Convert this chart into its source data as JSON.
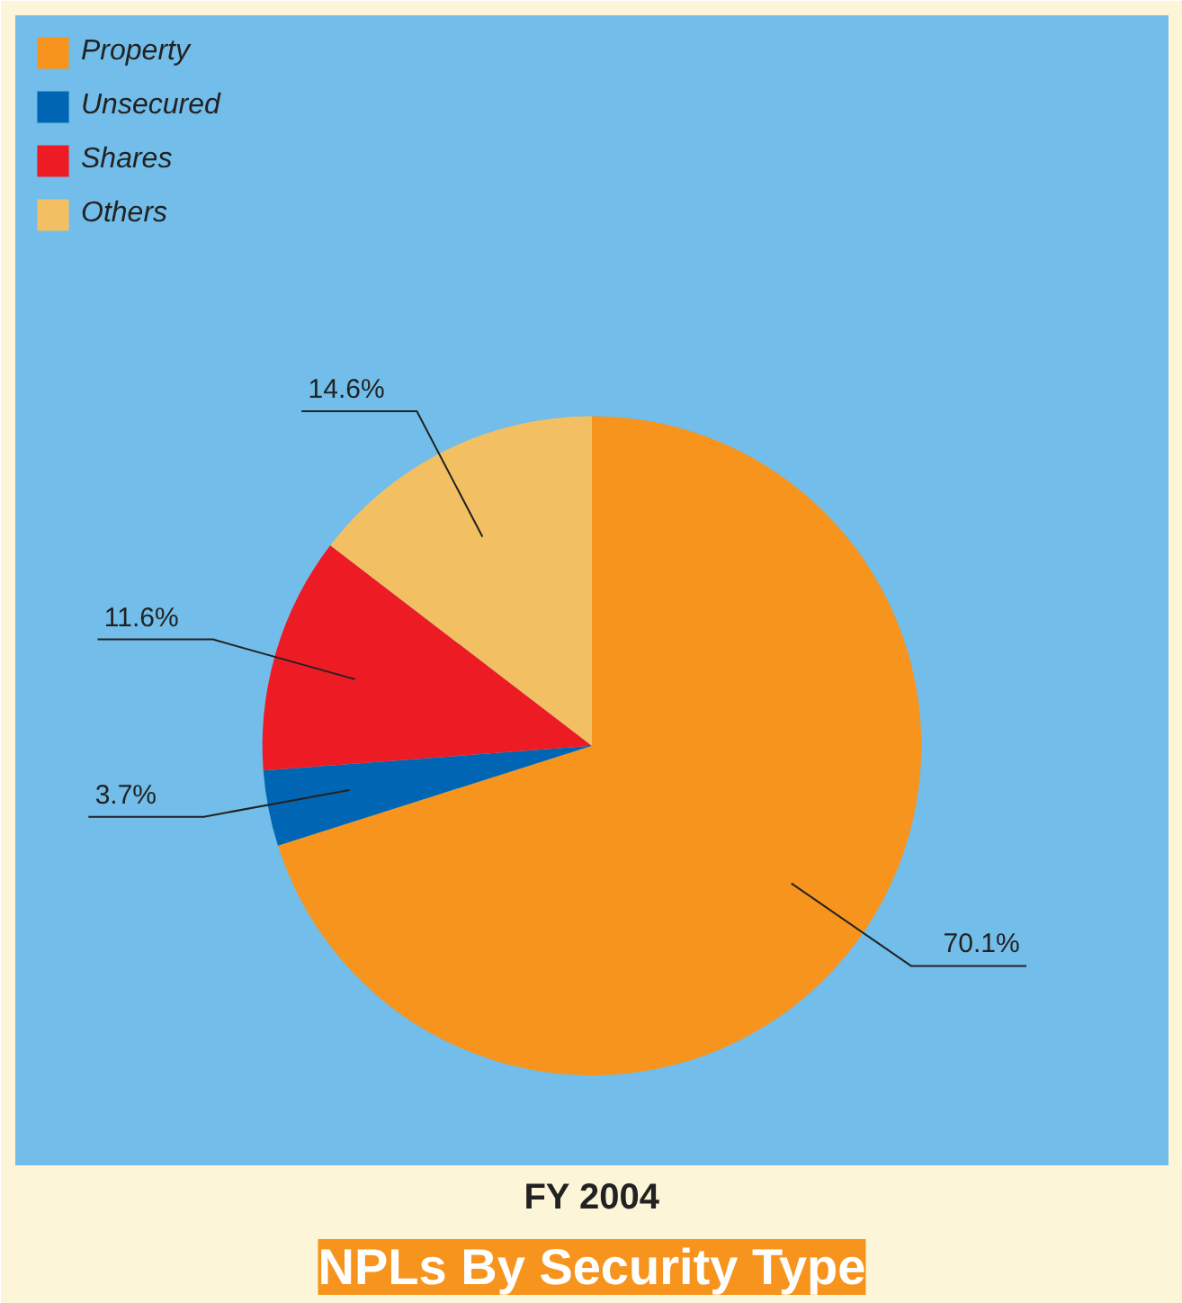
{
  "chart_data": {
    "type": "pie",
    "title": "NPLs By Security Type",
    "xlabel": "FY 2004",
    "categories": [
      "Property",
      "Unsecured",
      "Shares",
      "Others"
    ],
    "values": [
      70.1,
      3.7,
      11.6,
      14.6
    ],
    "colors": [
      "#f7941d",
      "#0066b3",
      "#ed1c24",
      "#f2c063"
    ],
    "value_labels": [
      "70.1%",
      "3.7%",
      "11.6%",
      "14.6%"
    ],
    "legend": "top left"
  }
}
